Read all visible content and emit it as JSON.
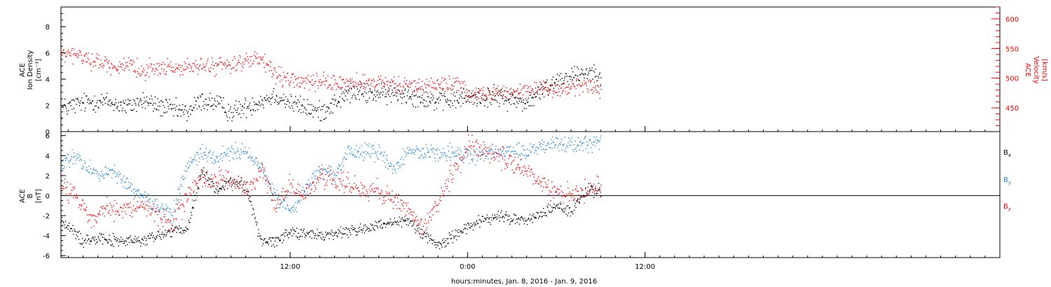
{
  "chart_data": [
    {
      "type": "scatter",
      "panel": "top",
      "ylabel_left": [
        "ACE",
        "Ion Density",
        "[cm⁻³]"
      ],
      "ylabel_right": [
        "ACE",
        "Velocity",
        "[km/s]"
      ],
      "yticks_left": [
        "0",
        "2",
        "4",
        "6",
        "8"
      ],
      "yticks_right": [
        "450",
        "500",
        "550",
        "600"
      ],
      "ylim_left": [
        0,
        9.5
      ],
      "ylim_right": [
        410,
        620
      ],
      "xlim_hours": [
        -3.5,
        60
      ],
      "x_unit": "hours from 2016-01-08 00:00",
      "series": [
        {
          "color": "#000000",
          "axis": "left",
          "key_hours": [
            -3.5,
            -2.5,
            -1,
            0,
            1,
            2,
            3,
            4,
            5,
            6,
            7,
            8,
            9,
            10,
            11,
            12,
            14,
            16,
            18,
            20,
            22,
            24,
            26,
            28,
            30,
            32,
            33
          ],
          "key_values": [
            1.8,
            2.1,
            2.4,
            2.2,
            1.9,
            2.4,
            2.0,
            1.7,
            1.5,
            2.4,
            2.2,
            1.5,
            1.9,
            2.4,
            2.8,
            2.2,
            1.5,
            3.0,
            2.9,
            2.9,
            2.3,
            2.6,
            2.7,
            2.2,
            4.0,
            4.6,
            4.5
          ],
          "noise": 0.75
        },
        {
          "color": "#ff0000",
          "axis": "right",
          "key_hours": [
            -3.5,
            -2.5,
            -1,
            0,
            1,
            2,
            3,
            4,
            5,
            6,
            7,
            8,
            9,
            10,
            11,
            12,
            14,
            16,
            18,
            20,
            22,
            23.5,
            24,
            26,
            28,
            30,
            32,
            33
          ],
          "key_values": [
            540,
            540,
            528,
            522,
            518,
            515,
            518,
            519,
            518,
            520,
            522,
            525,
            528,
            532,
            505,
            497,
            492,
            493,
            490,
            488,
            490,
            490,
            472,
            475,
            480,
            480,
            490,
            482
          ],
          "noise": 14
        }
      ]
    },
    {
      "type": "scatter",
      "panel": "bottom",
      "ylabel_left": [
        "ACE",
        "B",
        "[nT]"
      ],
      "yticks_left": [
        "-6",
        "-4",
        "-2",
        "0",
        "2",
        "4",
        "6"
      ],
      "ylim_left": [
        -6.2,
        6.4
      ],
      "xlim_hours": [
        -3.5,
        60
      ],
      "x_unit": "hours from 2016-01-08 00:00",
      "series": [
        {
          "name": "B",
          "subscript": "x",
          "color": "#000000",
          "key_hours": [
            -3.5,
            -2,
            -1,
            0,
            2,
            4,
            5,
            6,
            7,
            8,
            9,
            10,
            11,
            12,
            14,
            16,
            18,
            20,
            22,
            24,
            26,
            28,
            30,
            31,
            32,
            33
          ],
          "key_values": [
            -2.5,
            -4.5,
            -4.0,
            -4.5,
            -4.5,
            -3.5,
            -3.5,
            2.5,
            0.5,
            1.5,
            1.0,
            -4.5,
            -4.5,
            -3.5,
            -4.0,
            -3.5,
            -3.0,
            -2.5,
            -5.0,
            -3.0,
            -2.0,
            -2.5,
            -1.0,
            -1.5,
            0.5,
            0.5
          ],
          "noise": 0.6
        },
        {
          "name": "B",
          "subscript": "y",
          "color": "#1e87e0",
          "key_hours": [
            -3.5,
            -2.5,
            -1,
            0,
            1,
            2,
            3,
            4,
            5,
            6,
            7,
            8,
            9,
            10,
            11,
            12,
            13,
            14,
            15,
            16,
            17,
            18,
            19,
            20,
            22,
            24,
            26,
            28,
            30,
            32,
            33
          ],
          "key_values": [
            3.0,
            4.0,
            2.0,
            2.5,
            1.0,
            0,
            -1.0,
            -2.0,
            3.0,
            4.5,
            3.5,
            4.5,
            4.5,
            3.0,
            0,
            -1.5,
            0.5,
            2.5,
            2.0,
            4.5,
            4.5,
            4.5,
            2.5,
            4.5,
            4.5,
            4.0,
            4.5,
            4.5,
            5.2,
            5.2,
            5.5
          ],
          "noise": 0.8
        },
        {
          "name": "B",
          "subscript": "z",
          "color": "#ff0000",
          "key_hours": [
            -3.5,
            -2.5,
            -1.5,
            -0.5,
            0,
            2,
            3,
            4,
            5,
            6,
            7,
            8,
            9,
            10,
            11,
            11.5,
            12,
            13,
            14,
            16,
            18,
            20,
            21,
            22,
            24,
            26,
            28,
            30,
            32,
            33
          ],
          "key_values": [
            1.0,
            0,
            -2.5,
            -1.0,
            -1.5,
            -1.0,
            -2.0,
            -3.0,
            0,
            2.0,
            1.5,
            1.5,
            0.5,
            2.5,
            -1.0,
            0,
            1.0,
            0,
            2.0,
            1.0,
            0.5,
            -1.5,
            -3.0,
            -0.5,
            5.0,
            4.0,
            2.5,
            0,
            0.5,
            1.0
          ],
          "noise": 1.0
        }
      ]
    }
  ],
  "xaxis": {
    "tick_labels": [
      "12:00",
      "0:00",
      "12:00"
    ],
    "tick_hours": [
      12,
      24,
      36
    ],
    "label": "hours:minutes, Jan.  8, 2016 - Jan.  9, 2016"
  },
  "legend": {
    "bx_main": "B",
    "bx_sub": "x",
    "by_main": "B",
    "by_sub": "y",
    "bz_main": "B",
    "bz_sub": "z"
  },
  "colors": {
    "black": "#000000",
    "red": "#ff0000",
    "blue": "#1e87e0"
  }
}
